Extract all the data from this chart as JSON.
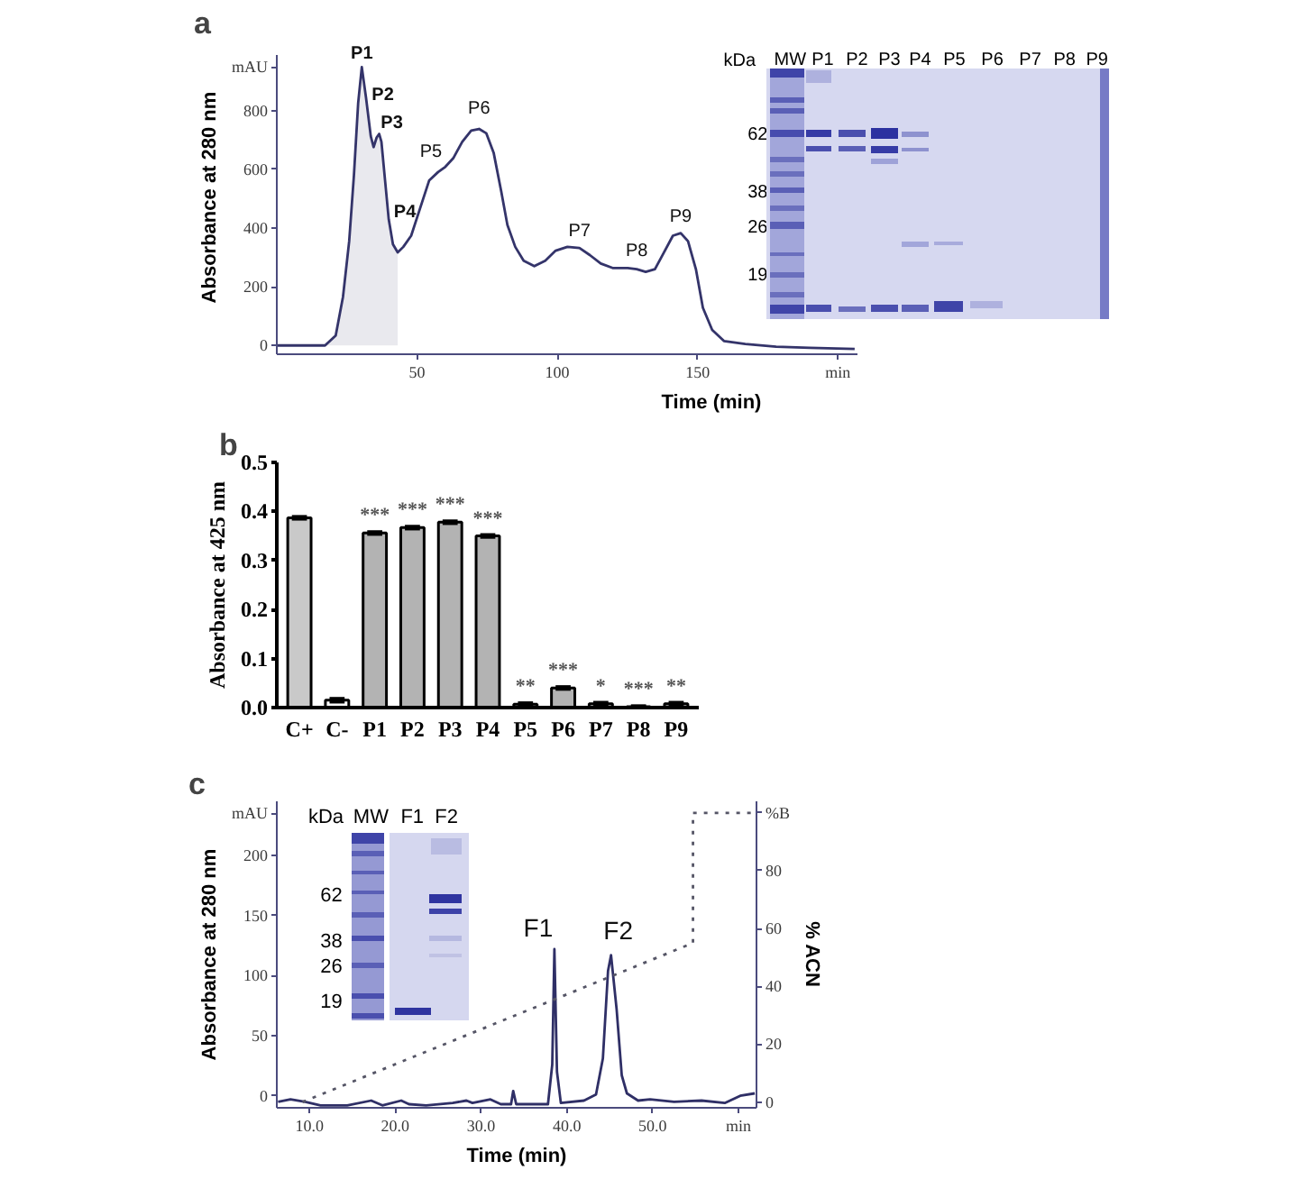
{
  "chart_data": [
    {
      "type": "line",
      "xlabel": "Time (min)",
      "ylabel": "Absorbance at 280 nm",
      "xlim": [
        0,
        207
      ],
      "ylim": [
        -30,
        990
      ],
      "xticks": [
        50,
        100,
        150,
        {
          "value": 200,
          "label": "min"
        }
      ],
      "yticks": [
        0,
        200,
        400,
        600,
        800,
        {
          "value": 950,
          "label": "mAU"
        }
      ],
      "series": [
        {
          "type": "area",
          "color": "#e9e9ee",
          "x": [
            17.2,
            21,
            23.6,
            25.8,
            27.5,
            29,
            30.3,
            31.8,
            33.5,
            34.5,
            35.6,
            36.5,
            37.3,
            38.6,
            39.9,
            41.4,
            43.1
          ],
          "values": [
            0,
            34,
            166,
            355,
            581,
            826,
            949,
            845,
            713,
            676,
            709,
            721,
            694,
            562,
            430,
            345,
            317
          ]
        },
        {
          "color": "#34346a",
          "x": [
            0,
            17.2,
            21,
            23.6,
            25.8,
            27.5,
            29,
            30.3,
            31.8,
            33.5,
            34.5,
            35.6,
            36.5,
            37.3,
            38.6,
            39.9,
            41.4,
            43.1,
            45.1,
            47.9,
            51.1,
            54.3,
            57.5,
            60.1,
            62.9,
            66.1,
            69.3,
            72.1,
            74.7,
            77.3,
            80,
            82.2,
            85,
            88,
            91.8,
            95.7,
            99.4,
            103.6,
            107.9,
            111.6,
            115.5,
            119.7,
            125.1,
            128.3,
            131.5,
            134.8,
            138,
            141.2,
            144,
            146.6,
            149.4,
            151.9,
            155.2,
            159.4,
            167,
            178,
            190,
            206
          ],
          "values": [
            0,
            0,
            34,
            166,
            355,
            581,
            826,
            949,
            845,
            713,
            676,
            709,
            721,
            694,
            562,
            430,
            345,
            317,
            336,
            374,
            468,
            562,
            591,
            609,
            638,
            694,
            732,
            738,
            723,
            657,
            525,
            411,
            336,
            289,
            270,
            289,
            323,
            336,
            332,
            308,
            279,
            264,
            264,
            260,
            251,
            260,
            317,
            374,
            383,
            355,
            260,
            128,
            53,
            15,
            5,
            -4,
            -8,
            -12
          ]
        }
      ],
      "annotations": [
        "a",
        "kDa",
        "MW",
        "P1",
        "P2",
        "P3",
        "P4",
        "P5",
        "P6",
        "P7",
        "P8",
        "P9",
        "62",
        "38",
        "26",
        "19",
        {
          "text": "P1",
          "x": 30.3,
          "y": 949
        },
        {
          "text": "P2",
          "x": 32,
          "y": 820
        },
        {
          "text": "P3",
          "x": 36.5,
          "y": 721
        },
        {
          "text": "P4",
          "x": 43.1,
          "y": 317
        },
        {
          "text": "P5",
          "x": 60.1,
          "y": 609
        },
        {
          "text": "P6",
          "x": 72.1,
          "y": 738
        },
        {
          "text": "P7",
          "x": 107.9,
          "y": 332
        },
        {
          "text": "P8",
          "x": 125.1,
          "y": 264
        },
        {
          "text": "P9",
          "x": 144,
          "y": 383
        }
      ]
    },
    {
      "type": "bar",
      "ylabel": "Absorbance at 425 nm",
      "categories": [
        "C+",
        "C-",
        "P1",
        "P2",
        "P3",
        "P4",
        "P5",
        "P6",
        "P7",
        "P8",
        "P9"
      ],
      "values": [
        0.387,
        0.015,
        0.356,
        0.367,
        0.378,
        0.35,
        0.007,
        0.04,
        0.008,
        0.002,
        0.008
      ],
      "errors": [
        0.002,
        0.003,
        0.002,
        0.002,
        0.002,
        0.002,
        0.002,
        0.002,
        0.002,
        0.001,
        0.002
      ],
      "colors": [
        "#c9c9c9",
        "#ffffff",
        "#b3b3b3",
        "#b3b3b3",
        "#b3b3b3",
        "#b3b3b3",
        "#b3b3b3",
        "#b3b3b3",
        "#b3b3b3",
        "#b3b3b3",
        "#b3b3b3"
      ],
      "value_labels": [
        null,
        null,
        "***",
        "***",
        "***",
        "***",
        "**",
        "***",
        "*",
        "***",
        "**"
      ],
      "ylim": [
        0,
        0.5
      ],
      "yticks": [
        {
          "value": 0,
          "label": "0.0"
        },
        0.1,
        0.2,
        0.3,
        0.4,
        0.5
      ],
      "annotations": [
        "b"
      ]
    },
    {
      "type": "line",
      "xlabel": "Time (min)",
      "ylabel": "Absorbance at 280 nm",
      "y2label": "% ACN",
      "xlim": [
        6.2,
        62.1
      ],
      "ylim": [
        -10,
        245
      ],
      "y2lim": [
        -2,
        104
      ],
      "xticks": [
        {
          "value": 10,
          "label": "10.0"
        },
        {
          "value": 20,
          "label": "20.0"
        },
        {
          "value": 30,
          "label": "30.0"
        },
        {
          "value": 40,
          "label": "40.0"
        },
        {
          "value": 50,
          "label": "50.0"
        },
        {
          "value": 60,
          "label": "min"
        }
      ],
      "yticks": [
        0,
        50,
        100,
        150,
        200,
        {
          "value": 235,
          "label": "mAU"
        }
      ],
      "y2ticks": [
        0,
        20,
        40,
        60,
        80,
        {
          "value": 100,
          "label": "%B"
        }
      ],
      "series": [
        {
          "color": "#2f2f66",
          "x": [
            6.35,
            7.8,
            9.5,
            11.3,
            14.4,
            17.2,
            18.5,
            20.7,
            21.6,
            23.6,
            26.7,
            28.3,
            29,
            31.1,
            32.3,
            33.5,
            33.75,
            34.1,
            37.8,
            38.3,
            38.55,
            38.85,
            39.3,
            42,
            43.4,
            44.2,
            44.8,
            45.15,
            45.8,
            46.4,
            47,
            48.3,
            49.7,
            52.5,
            55.7,
            58.4,
            60.2,
            61.9
          ],
          "values": [
            -5,
            -3,
            -5,
            -8,
            -8,
            -4,
            -8,
            -4,
            -7,
            -8,
            -6,
            -4,
            -6,
            -3,
            -7,
            -7,
            4,
            -7,
            -7,
            26,
            122,
            20,
            -6,
            -4,
            1,
            31,
            104,
            117,
            72,
            17,
            2,
            -4,
            -3,
            -5,
            -4,
            -6,
            0,
            2
          ]
        },
        {
          "axis": "y2",
          "color": "#555566",
          "line_style": "dotted",
          "x": [
            9.2,
            54.7,
            54.7,
            62.1
          ],
          "values": [
            0,
            55,
            100,
            100
          ]
        }
      ],
      "annotations": [
        "c",
        "kDa",
        "MW",
        "F1",
        "F2",
        "62",
        "38",
        "26",
        "19",
        {
          "text": "F1",
          "x": 38.55,
          "y": 122
        },
        {
          "text": "F2",
          "x": 45.15,
          "y": 117
        }
      ]
    }
  ]
}
